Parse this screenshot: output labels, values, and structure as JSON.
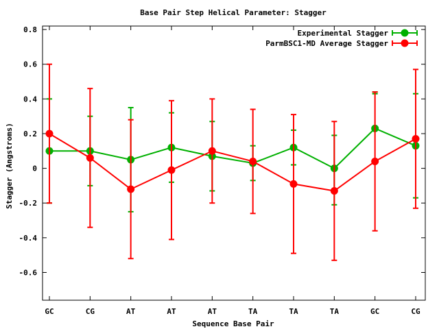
{
  "chart_data": {
    "type": "line",
    "title": "Base Pair Step Helical Parameter: Stagger",
    "xlabel": "Sequence Base Pair",
    "ylabel": "Stagger (Angstroms)",
    "categories": [
      "GC",
      "CG",
      "AT",
      "AT",
      "AT",
      "TA",
      "TA",
      "TA",
      "GC",
      "CG"
    ],
    "ylim": [
      -0.76,
      0.82
    ],
    "yticks": [
      -0.6,
      -0.4,
      -0.2,
      0,
      0.2,
      0.4,
      0.6,
      0.8
    ],
    "ytick_labels": [
      "-0.6",
      "-0.4",
      "-0.2",
      "0",
      "0.2",
      "0.4",
      "0.6",
      "0.8"
    ],
    "grid": false,
    "legend_position": "top-right",
    "series": [
      {
        "name": "Experimental Stagger",
        "color": "#00b000",
        "values": [
          0.1,
          0.1,
          0.05,
          0.12,
          0.07,
          0.03,
          0.12,
          0.0,
          0.23,
          0.13
        ],
        "err_low": [
          -0.2,
          -0.1,
          -0.25,
          -0.08,
          -0.13,
          -0.07,
          0.02,
          -0.21,
          0.43,
          -0.17
        ],
        "err_high": [
          0.4,
          0.3,
          0.35,
          0.32,
          0.27,
          0.13,
          0.22,
          0.19,
          0.44,
          0.43
        ]
      },
      {
        "name": "ParmBSC1-MD Average Stagger",
        "color": "#ff0000",
        "values": [
          0.2,
          0.06,
          -0.12,
          -0.01,
          0.1,
          0.04,
          -0.09,
          -0.13,
          0.04,
          0.17
        ],
        "err_low": [
          -0.2,
          -0.34,
          -0.52,
          -0.41,
          -0.2,
          -0.26,
          -0.49,
          -0.53,
          -0.36,
          -0.23
        ],
        "err_high": [
          0.6,
          0.46,
          0.28,
          0.39,
          0.4,
          0.34,
          0.31,
          0.27,
          0.44,
          0.57
        ]
      }
    ]
  }
}
